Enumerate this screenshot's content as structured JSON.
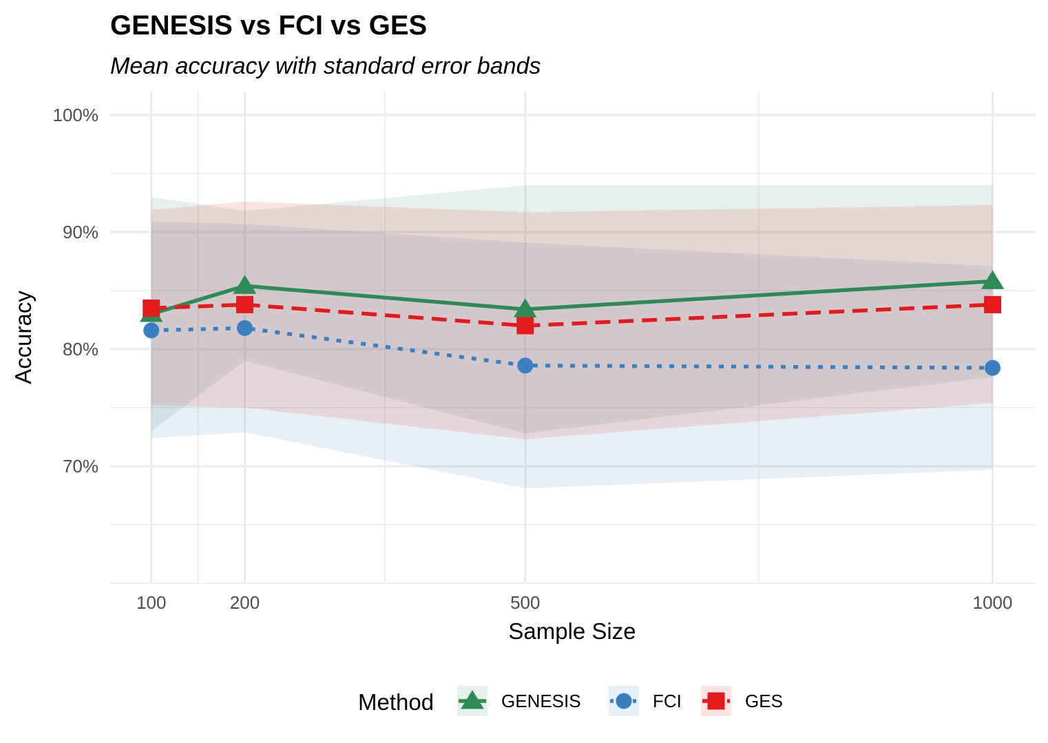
{
  "chart_data": {
    "type": "line",
    "title": "GENESIS vs FCI vs GES",
    "subtitle": "Mean accuracy with standard error bands",
    "xlabel": "Sample Size",
    "ylabel": "Accuracy",
    "x": [
      100,
      200,
      500,
      1000
    ],
    "x_ticks": [
      100,
      200,
      500,
      1000
    ],
    "x_tick_labels": [
      "100",
      "200",
      "500",
      "1000"
    ],
    "y_ticks": [
      70,
      80,
      90,
      100
    ],
    "y_tick_labels": [
      "70%",
      "80%",
      "90%",
      "100%"
    ],
    "xlim": [
      56,
      1046
    ],
    "ylim": [
      60,
      102
    ],
    "x_scale": "linear",
    "y_unit": "percent",
    "grid": true,
    "legend": {
      "title": "Method",
      "position": "bottom"
    },
    "series": [
      {
        "name": "GENESIS",
        "values": [
          83.0,
          85.4,
          83.4,
          85.8
        ],
        "se_lower": [
          73.0,
          79.0,
          72.8,
          77.6
        ],
        "se_upper": [
          93.0,
          91.8,
          94.0,
          94.0
        ],
        "color": "#2e8b57",
        "marker": "triangle",
        "linestyle": "solid"
      },
      {
        "name": "FCI",
        "values": [
          81.6,
          81.8,
          78.6,
          78.4
        ],
        "se_lower": [
          72.4,
          72.9,
          68.1,
          69.7
        ],
        "se_upper": [
          90.9,
          90.7,
          89.1,
          87.1
        ],
        "color": "#3a7fc0",
        "marker": "circle",
        "linestyle": "dotted"
      },
      {
        "name": "GES",
        "values": [
          83.5,
          83.8,
          82.0,
          83.8
        ],
        "se_lower": [
          75.2,
          75.0,
          72.3,
          75.4
        ],
        "se_upper": [
          91.9,
          92.6,
          91.7,
          92.3
        ],
        "color": "#e41a1c",
        "marker": "square",
        "linestyle": "dashed"
      }
    ]
  }
}
